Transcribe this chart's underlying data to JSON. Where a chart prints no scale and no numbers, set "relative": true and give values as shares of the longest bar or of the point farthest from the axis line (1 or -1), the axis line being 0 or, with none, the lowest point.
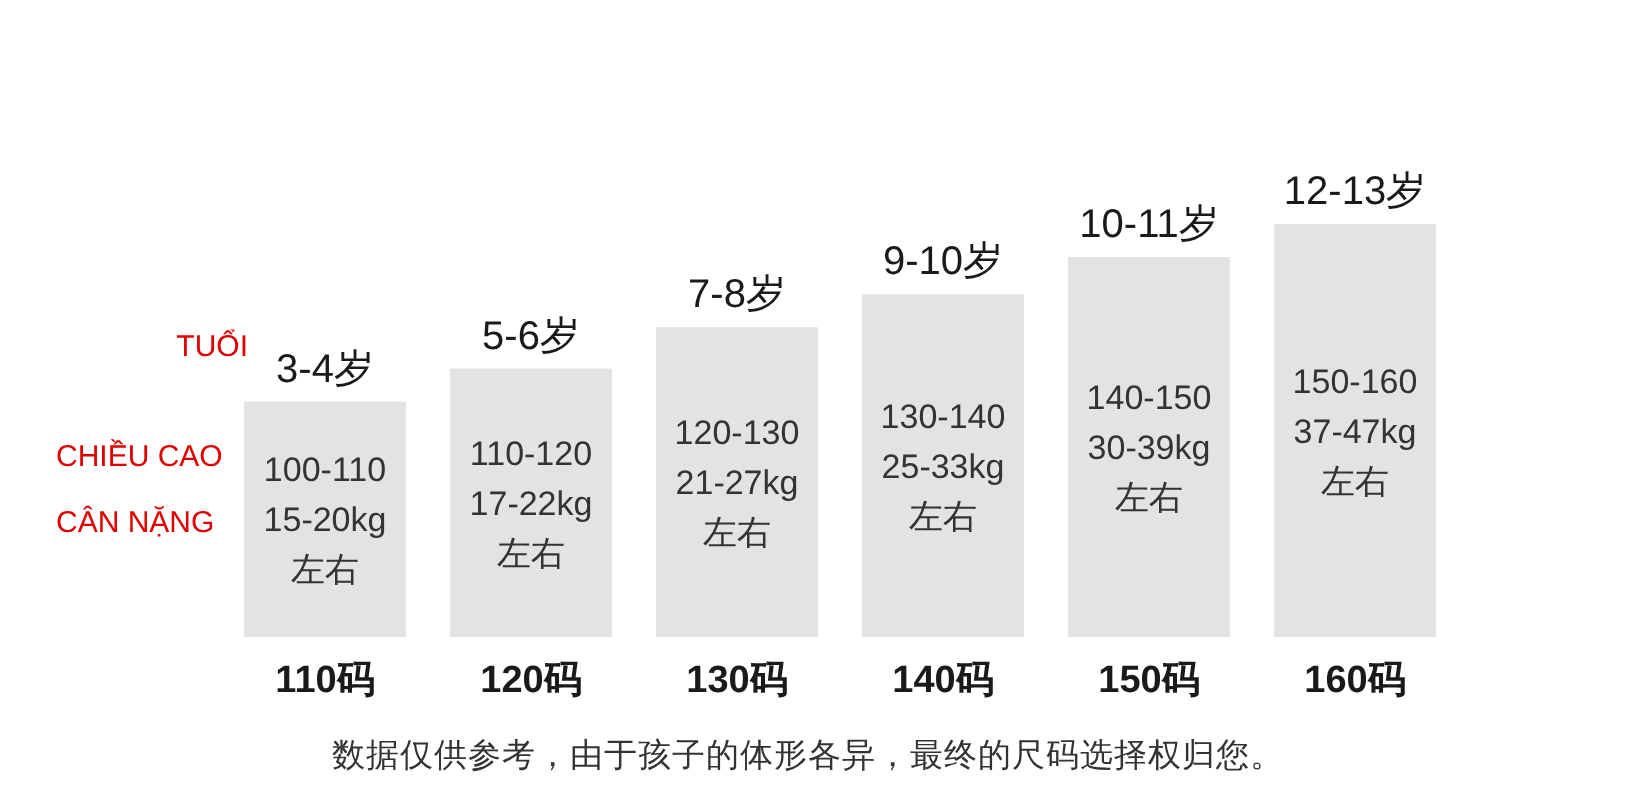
{
  "chart_data": {
    "type": "bar",
    "relative": true,
    "color": "#e3e3e3",
    "categories": [
      "110码",
      "120码",
      "130码",
      "140码",
      "150码",
      "160码"
    ],
    "values": [
      0.57,
      0.65,
      0.75,
      0.83,
      0.92,
      1
    ],
    "annotations": [
      "TUỔI",
      "CHIỀU CAO",
      "CÂN NẶNG",
      {
        "text": "3-4岁",
        "x": "110码",
        "y": 0.57
      },
      {
        "text": "5-6岁",
        "x": "120码",
        "y": 0.65
      },
      {
        "text": "7-8岁",
        "x": "130码",
        "y": 0.75
      },
      {
        "text": "9-10岁",
        "x": "140码",
        "y": 0.83
      },
      {
        "text": "10-11岁",
        "x": "150码",
        "y": 0.92
      },
      {
        "text": "12-13岁",
        "x": "160码",
        "y": 1
      },
      "100-110\n15-20kg\n左右",
      "110-120\n17-22kg\n左右",
      "120-130\n21-27kg\n左右",
      "130-140\n25-33kg\n左右",
      "140-150\n30-39kg\n左右",
      "150-160\n37-47kg\n左右",
      "数据仅供参考，由于孩子的体形各异，最终的尺码选择权归您。"
    ]
  }
}
